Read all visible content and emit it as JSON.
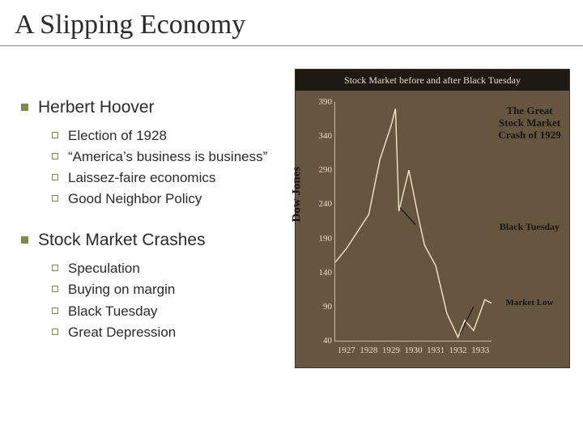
{
  "slide": {
    "title": "A Slipping Economy",
    "sections": [
      {
        "heading": "Herbert Hoover",
        "items": [
          "Election of 1928",
          "“America’s business is business”",
          "Laissez-faire economics",
          "Good Neighbor Policy"
        ]
      },
      {
        "heading": "Stock Market Crashes",
        "items": [
          "Speculation",
          "Buying on margin",
          "Black Tuesday",
          "Great Depression"
        ]
      }
    ]
  },
  "chart": {
    "type": "line",
    "title": "Stock Market before and after Black Tuesday",
    "y_axis_label": "Dow Jones",
    "background_color": "#66563f",
    "title_bar_color": "#1e1912",
    "text_color": "#e8ddc5",
    "line_color": "#f2e7c8",
    "line_width": 1.4,
    "axis_color": "#c8bda0",
    "y_ticks": [
      40,
      90,
      140,
      190,
      240,
      290,
      340,
      390
    ],
    "ylim": [
      40,
      390
    ],
    "x_ticks_labels": [
      "1927",
      "1928",
      "1929",
      "1930",
      "1931",
      "1932",
      "1933"
    ],
    "xlim": [
      1927,
      1934
    ],
    "series": [
      {
        "x": 1927.0,
        "y": 155
      },
      {
        "x": 1927.5,
        "y": 175
      },
      {
        "x": 1928.0,
        "y": 200
      },
      {
        "x": 1928.5,
        "y": 225
      },
      {
        "x": 1929.0,
        "y": 305
      },
      {
        "x": 1929.5,
        "y": 355
      },
      {
        "x": 1929.7,
        "y": 380
      },
      {
        "x": 1929.85,
        "y": 230
      },
      {
        "x": 1930.0,
        "y": 250
      },
      {
        "x": 1930.3,
        "y": 290
      },
      {
        "x": 1930.7,
        "y": 225
      },
      {
        "x": 1931.0,
        "y": 180
      },
      {
        "x": 1931.5,
        "y": 150
      },
      {
        "x": 1932.0,
        "y": 80
      },
      {
        "x": 1932.5,
        "y": 45
      },
      {
        "x": 1932.8,
        "y": 70
      },
      {
        "x": 1933.2,
        "y": 55
      },
      {
        "x": 1933.7,
        "y": 100
      },
      {
        "x": 1934.0,
        "y": 95
      }
    ],
    "annotations": {
      "crash_title": "The Great Stock Market Crash of 1929",
      "black_tuesday": "Black Tuesday",
      "market_low": "Market Low"
    }
  },
  "colors": {
    "bullet_fill": "#7a8a4a",
    "text": "#2b2b2b",
    "rule": "#888888"
  }
}
